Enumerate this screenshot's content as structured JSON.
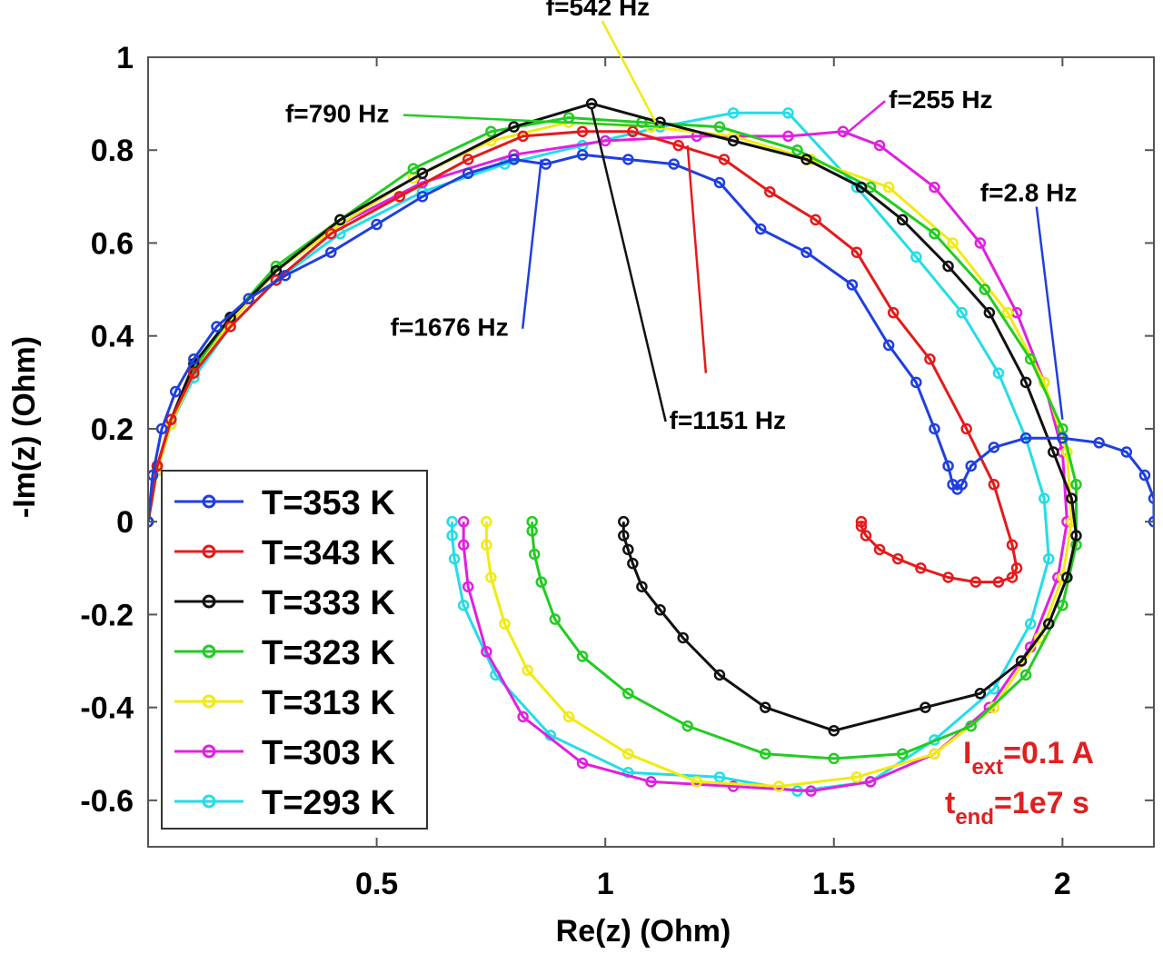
{
  "chart_data": {
    "type": "line",
    "xlabel": "Re(z) (Ohm)",
    "ylabel": "-Im(z) (Ohm)",
    "xlim": [
      0.0,
      2.2
    ],
    "ylim": [
      -0.7,
      1.0
    ],
    "xticks": [
      0.5,
      1,
      1.5,
      2
    ],
    "xtick_labels": [
      "0.5",
      "1",
      "1.5",
      "2"
    ],
    "yticks": [
      1,
      0.8,
      0.6,
      0.4,
      0.2,
      0,
      -0.2,
      -0.4,
      -0.6
    ],
    "ytick_labels": [
      "1",
      "0.8",
      "0.6",
      "0.4",
      "0.2",
      "0",
      "-0.2",
      "-0.4",
      "-0.6"
    ],
    "grid": false,
    "legend_position": "bottom-left",
    "series": [
      {
        "name": "T=353 K",
        "color": "#1f3fe0",
        "marker": "circle",
        "x": [
          0.0,
          0.01,
          0.03,
          0.06,
          0.1,
          0.15,
          0.22,
          0.3,
          0.4,
          0.5,
          0.6,
          0.7,
          0.8,
          0.87,
          0.95,
          1.05,
          1.15,
          1.25,
          1.34,
          1.44,
          1.54,
          1.62,
          1.68,
          1.72,
          1.75,
          1.76,
          1.77,
          1.78,
          1.8,
          1.85,
          1.92,
          2.0,
          2.08,
          2.14,
          2.18,
          2.2,
          2.2
        ],
        "y": [
          0.0,
          0.1,
          0.2,
          0.28,
          0.35,
          0.42,
          0.48,
          0.53,
          0.58,
          0.64,
          0.7,
          0.75,
          0.78,
          0.77,
          0.79,
          0.78,
          0.77,
          0.73,
          0.63,
          0.58,
          0.51,
          0.38,
          0.3,
          0.2,
          0.12,
          0.08,
          0.07,
          0.08,
          0.12,
          0.16,
          0.18,
          0.18,
          0.17,
          0.15,
          0.1,
          0.05,
          0.0
        ]
      },
      {
        "name": "T=343 K",
        "color": "#e51a1a",
        "marker": "circle",
        "x": [
          0.0,
          0.02,
          0.05,
          0.1,
          0.18,
          0.28,
          0.4,
          0.55,
          0.7,
          0.82,
          0.95,
          1.06,
          1.16,
          1.26,
          1.36,
          1.46,
          1.55,
          1.63,
          1.71,
          1.79,
          1.85,
          1.89,
          1.9,
          1.89,
          1.86,
          1.81,
          1.75,
          1.69,
          1.64,
          1.6,
          1.57,
          1.56,
          1.56
        ],
        "y": [
          0.0,
          0.12,
          0.22,
          0.32,
          0.42,
          0.52,
          0.62,
          0.7,
          0.78,
          0.83,
          0.84,
          0.84,
          0.81,
          0.78,
          0.71,
          0.65,
          0.58,
          0.45,
          0.35,
          0.2,
          0.08,
          -0.05,
          -0.1,
          -0.12,
          -0.13,
          -0.13,
          -0.12,
          -0.1,
          -0.08,
          -0.06,
          -0.03,
          -0.01,
          0.0
        ]
      },
      {
        "name": "T=333 K",
        "color": "#111111",
        "marker": "circle",
        "x": [
          0.0,
          0.02,
          0.05,
          0.1,
          0.18,
          0.28,
          0.42,
          0.6,
          0.8,
          0.97,
          1.12,
          1.28,
          1.44,
          1.56,
          1.65,
          1.75,
          1.84,
          1.92,
          1.98,
          2.02,
          2.03,
          2.01,
          1.97,
          1.91,
          1.82,
          1.7,
          1.5,
          1.35,
          1.25,
          1.17,
          1.12,
          1.08,
          1.06,
          1.05,
          1.04,
          1.04
        ],
        "y": [
          0.0,
          0.12,
          0.22,
          0.34,
          0.44,
          0.54,
          0.65,
          0.75,
          0.85,
          0.9,
          0.86,
          0.82,
          0.78,
          0.72,
          0.65,
          0.55,
          0.45,
          0.3,
          0.15,
          0.05,
          -0.03,
          -0.12,
          -0.22,
          -0.3,
          -0.37,
          -0.4,
          -0.45,
          -0.4,
          -0.33,
          -0.25,
          -0.19,
          -0.14,
          -0.09,
          -0.06,
          -0.03,
          0.0
        ]
      },
      {
        "name": "T=323 K",
        "color": "#22cc22",
        "marker": "circle",
        "x": [
          0.0,
          0.02,
          0.05,
          0.1,
          0.18,
          0.28,
          0.42,
          0.58,
          0.75,
          0.92,
          1.08,
          1.25,
          1.42,
          1.58,
          1.72,
          1.83,
          1.93,
          2.0,
          2.03,
          2.03,
          2.0,
          1.92,
          1.8,
          1.65,
          1.5,
          1.35,
          1.18,
          1.05,
          0.95,
          0.89,
          0.86,
          0.845,
          0.84,
          0.84
        ],
        "y": [
          0.0,
          0.12,
          0.22,
          0.33,
          0.44,
          0.55,
          0.65,
          0.76,
          0.84,
          0.87,
          0.86,
          0.85,
          0.8,
          0.72,
          0.62,
          0.5,
          0.35,
          0.2,
          0.08,
          -0.05,
          -0.18,
          -0.33,
          -0.44,
          -0.5,
          -0.51,
          -0.5,
          -0.44,
          -0.37,
          -0.29,
          -0.21,
          -0.13,
          -0.07,
          -0.02,
          0.0
        ]
      },
      {
        "name": "T=313 K",
        "color": "#f2ea10",
        "marker": "circle",
        "x": [
          0.0,
          0.02,
          0.05,
          0.1,
          0.18,
          0.28,
          0.42,
          0.58,
          0.75,
          0.92,
          1.1,
          1.28,
          1.45,
          1.62,
          1.76,
          1.88,
          1.96,
          2.01,
          2.02,
          2.0,
          1.95,
          1.85,
          1.72,
          1.55,
          1.38,
          1.2,
          1.05,
          0.92,
          0.83,
          0.78,
          0.75,
          0.74,
          0.74
        ],
        "y": [
          0.0,
          0.11,
          0.21,
          0.32,
          0.43,
          0.54,
          0.64,
          0.74,
          0.82,
          0.86,
          0.85,
          0.83,
          0.78,
          0.72,
          0.6,
          0.45,
          0.3,
          0.15,
          0.0,
          -0.12,
          -0.25,
          -0.4,
          -0.5,
          -0.55,
          -0.57,
          -0.56,
          -0.5,
          -0.42,
          -0.32,
          -0.22,
          -0.12,
          -0.05,
          0.0
        ]
      },
      {
        "name": "T=303 K",
        "color": "#e020e0",
        "marker": "circle",
        "x": [
          0.0,
          0.02,
          0.05,
          0.1,
          0.18,
          0.28,
          0.42,
          0.6,
          0.8,
          1.0,
          1.2,
          1.4,
          1.52,
          1.6,
          1.72,
          1.82,
          1.9,
          1.96,
          2.0,
          2.01,
          1.99,
          1.93,
          1.84,
          1.72,
          1.58,
          1.45,
          1.28,
          1.1,
          0.95,
          0.82,
          0.74,
          0.7,
          0.69,
          0.69
        ],
        "y": [
          0.0,
          0.11,
          0.21,
          0.32,
          0.43,
          0.54,
          0.64,
          0.73,
          0.79,
          0.82,
          0.83,
          0.83,
          0.84,
          0.81,
          0.72,
          0.6,
          0.45,
          0.3,
          0.15,
          0.0,
          -0.12,
          -0.27,
          -0.4,
          -0.5,
          -0.56,
          -0.58,
          -0.57,
          -0.56,
          -0.52,
          -0.42,
          -0.28,
          -0.14,
          -0.05,
          0.0
        ]
      },
      {
        "name": "T=293 K",
        "color": "#22dde8",
        "marker": "circle",
        "x": [
          0.0,
          0.02,
          0.05,
          0.1,
          0.18,
          0.28,
          0.42,
          0.6,
          0.78,
          0.95,
          1.12,
          1.28,
          1.4,
          1.55,
          1.68,
          1.78,
          1.86,
          1.92,
          1.96,
          1.97,
          1.93,
          1.85,
          1.72,
          1.58,
          1.42,
          1.25,
          1.05,
          0.88,
          0.76,
          0.69,
          0.67,
          0.665,
          0.665
        ],
        "y": [
          0.0,
          0.11,
          0.21,
          0.31,
          0.42,
          0.52,
          0.62,
          0.71,
          0.77,
          0.81,
          0.85,
          0.88,
          0.88,
          0.72,
          0.57,
          0.45,
          0.32,
          0.18,
          0.05,
          -0.08,
          -0.22,
          -0.36,
          -0.47,
          -0.56,
          -0.58,
          -0.55,
          -0.54,
          -0.46,
          -0.33,
          -0.18,
          -0.08,
          -0.03,
          0.0
        ]
      }
    ],
    "annotations": [
      {
        "text": "f=542 Hz",
        "text_x": 0.87,
        "text_y": 1.09,
        "point_x": 1.11,
        "point_y": 0.86,
        "color": "#f2ea10"
      },
      {
        "text": "f=790 Hz",
        "text_x": 0.3,
        "text_y": 0.86,
        "point_x": 1.13,
        "point_y": 0.85,
        "color": "#22cc22"
      },
      {
        "text": "f=255 Hz",
        "text_x": 1.62,
        "text_y": 0.89,
        "point_x": 1.52,
        "point_y": 0.83,
        "color": "#e020e0"
      },
      {
        "text": "f=2.8 Hz",
        "text_x": 1.82,
        "text_y": 0.69,
        "point_x": 2.0,
        "point_y": 0.22,
        "color": "#1f3fe0"
      },
      {
        "text": "f=1676 Hz",
        "text_x": 0.53,
        "text_y": 0.4,
        "point_x": 0.86,
        "point_y": 0.78,
        "color": "#1f3fe0"
      },
      {
        "text": "f=1151 Hz",
        "text_x": 1.14,
        "text_y": 0.2,
        "point_x": 0.97,
        "point_y": 0.89,
        "color": "#111111"
      }
    ],
    "extra_annotation_lines": [
      {
        "text_x": 1.22,
        "text_y": 0.32,
        "point_x": 1.18,
        "point_y": 0.81,
        "color": "#e51a1a"
      }
    ],
    "conditions": {
      "line1_main": "I",
      "line1_sub": "ext",
      "line1_rest": "=0.1 A",
      "line2_main": "t",
      "line2_sub": "end",
      "line2_rest": "=1e7 s",
      "color": "#e02020"
    }
  }
}
